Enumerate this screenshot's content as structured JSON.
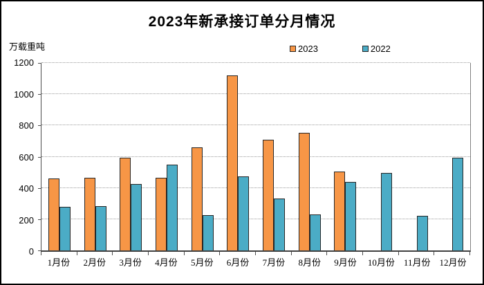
{
  "chart_data": {
    "type": "bar",
    "title": "2023年新承接订单分月情况",
    "unit_label": "万载重吨",
    "categories": [
      "1月份",
      "2月份",
      "3月份",
      "4月份",
      "5月份",
      "6月份",
      "7月份",
      "8月份",
      "9月份",
      "10月份",
      "11月份",
      "12月份"
    ],
    "series": [
      {
        "name": "2023",
        "color": "#F79646",
        "values": [
          460,
          463,
          593,
          467,
          660,
          1120,
          710,
          755,
          505,
          null,
          null,
          null
        ]
      },
      {
        "name": "2022",
        "color": "#4BACC6",
        "values": [
          281,
          283,
          427,
          548,
          228,
          476,
          330,
          230,
          440,
          495,
          220,
          593
        ]
      }
    ],
    "ylim": [
      0,
      1200
    ],
    "ytick_step": 200,
    "yticks": [
      "0",
      "200",
      "400",
      "600",
      "800",
      "1000",
      "1200"
    ],
    "grid": "horizontal-dotted",
    "legend_position": "top-right-of-plot",
    "bar_border_color": "#262626",
    "gridline_color": "#9a9a9a"
  }
}
